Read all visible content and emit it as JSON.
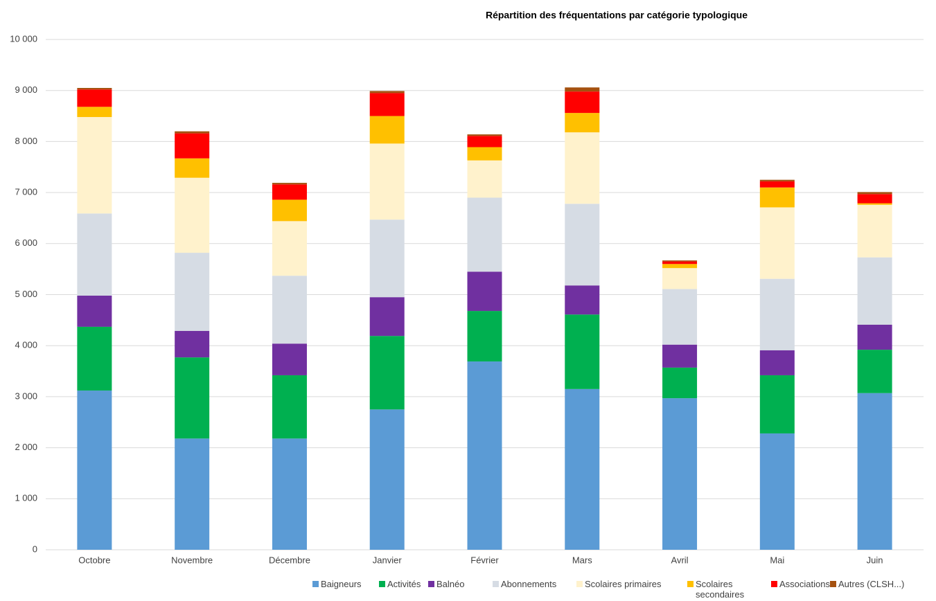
{
  "chart_data": {
    "type": "stacked_bar",
    "title": "Répartition des fréquentations par catégorie typologique",
    "categories": [
      "Octobre",
      "Novembre",
      "Décembre",
      "Janvier",
      "Février",
      "Mars",
      "Avril",
      "Mai",
      "Juin"
    ],
    "series": [
      {
        "name": "Baigneurs",
        "color": "#5b9bd5",
        "values": [
          3120,
          2180,
          2180,
          2750,
          3690,
          3150,
          2970,
          2280,
          3070
        ]
      },
      {
        "name": "Activités",
        "color": "#00b050",
        "values": [
          1250,
          1590,
          1240,
          1440,
          990,
          1460,
          600,
          1140,
          850
        ]
      },
      {
        "name": "Balnéo",
        "color": "#7030a0",
        "values": [
          610,
          520,
          620,
          760,
          770,
          570,
          450,
          490,
          490
        ]
      },
      {
        "name": "Abonnements",
        "color": "#d6dce4",
        "values": [
          1610,
          1530,
          1330,
          1520,
          1450,
          1600,
          1090,
          1400,
          1320
        ]
      },
      {
        "name": "Scolaires primaires",
        "color": "#fff2cc",
        "values": [
          1890,
          1470,
          1070,
          1490,
          730,
          1400,
          410,
          1400,
          1030
        ]
      },
      {
        "name": "Scolaires secondaires",
        "color": "#ffc000",
        "values": [
          200,
          380,
          420,
          540,
          260,
          380,
          80,
          390,
          30
        ]
      },
      {
        "name": "Associations",
        "color": "#ff0000",
        "values": [
          340,
          490,
          300,
          450,
          220,
          420,
          50,
          120,
          180
        ]
      },
      {
        "name": "Autres (CLSH...)",
        "color": "#a5510f",
        "values": [
          30,
          40,
          30,
          40,
          30,
          80,
          20,
          30,
          40
        ]
      }
    ],
    "ylim": [
      0,
      10000
    ],
    "yticks": [
      0,
      {
        "value": 1000,
        "label": "1 000"
      },
      {
        "value": 2000,
        "label": "2 000"
      },
      {
        "value": 3000,
        "label": "3 000"
      },
      {
        "value": 4000,
        "label": "4 000"
      },
      {
        "value": 5000,
        "label": "5 000"
      },
      {
        "value": 6000,
        "label": "6 000"
      },
      {
        "value": 7000,
        "label": "7 000"
      },
      {
        "value": 8000,
        "label": "8 000"
      },
      {
        "value": 9000,
        "label": "9 000"
      },
      {
        "value": 10000,
        "label": "10 000"
      }
    ],
    "grid": true
  }
}
